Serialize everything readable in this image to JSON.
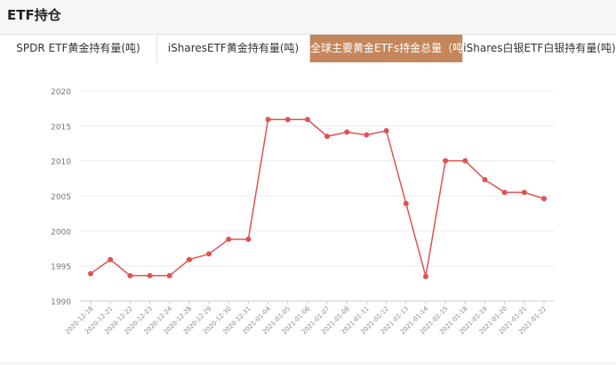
{
  "header": {
    "title": "ETF持仓"
  },
  "tabs": [
    {
      "label": "SPDR ETF黄金持有量(吨)",
      "active": false
    },
    {
      "label": "iSharesETF黄金持有量(吨)",
      "active": false
    },
    {
      "label": "全球主要黄金ETFs持金总量（吨）",
      "active": true
    },
    {
      "label": "iShares白银ETF白银持有量(吨)",
      "active": false
    }
  ],
  "colors": {
    "line": "#e05252",
    "active_tab": "#c4865a"
  },
  "chart_data": {
    "type": "line",
    "title": "",
    "xlabel": "",
    "ylabel": "",
    "ylim": [
      1990,
      2020
    ],
    "yticks": [
      1990,
      1995,
      2000,
      2005,
      2010,
      2015,
      2020
    ],
    "grid": true,
    "categories": [
      "2020-12-18",
      "2020-12-21",
      "2020-12-22",
      "2020-12-23",
      "2020-12-24",
      "2020-12-28",
      "2020-12-29",
      "2020-12-30",
      "2020-12-31",
      "2021-01-04",
      "2021-01-05",
      "2021-01-06",
      "2021-01-07",
      "2021-01-08",
      "2021-01-11",
      "2021-01-12",
      "2021-01-13",
      "2021-01-14",
      "2021-01-15",
      "2021-01-18",
      "2021-01-19",
      "2021-01-20",
      "2021-01-21",
      "2021-01-22"
    ],
    "series": [
      {
        "values": [
          1993.9,
          1995.9,
          1993.6,
          1993.6,
          1993.6,
          1995.9,
          1996.7,
          1998.8,
          1998.8,
          2015.9,
          2015.9,
          2015.9,
          2013.5,
          2014.1,
          2013.7,
          2014.3,
          2003.9,
          1993.5,
          2010.0,
          2010.0,
          2007.3,
          2005.5,
          2005.5,
          2004.6
        ]
      }
    ]
  }
}
